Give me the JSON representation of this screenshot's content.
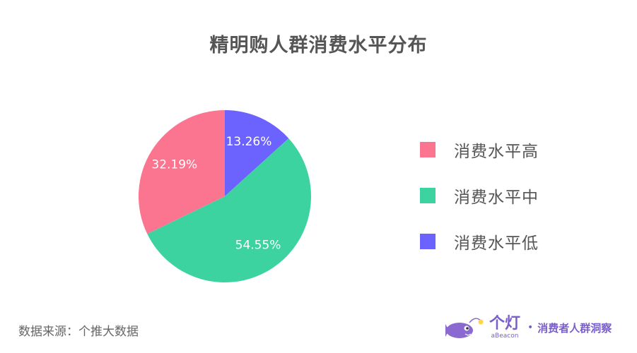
{
  "title": "精明购人群消费水平分布",
  "source": "数据来源：个推大数据",
  "brand": {
    "name_cn": "个灯",
    "name_en": "aBeacon",
    "dot": "•",
    "tagline": "消费者人群洞察"
  },
  "chart_data": {
    "type": "pie",
    "title": "精明购人群消费水平分布",
    "slices": [
      {
        "name": "消费水平低",
        "value": 13.26,
        "label": "13.26%",
        "color": "#6c63fe"
      },
      {
        "name": "消费水平中",
        "value": 54.55,
        "label": "54.55%",
        "color": "#3cd3a0"
      },
      {
        "name": "消费水平高",
        "value": 32.19,
        "label": "32.19%",
        "color": "#fc7590"
      }
    ],
    "legend": {
      "position": "right",
      "items": [
        {
          "name": "消费水平高",
          "color": "#fc7590"
        },
        {
          "name": "消费水平中",
          "color": "#3cd3a0"
        },
        {
          "name": "消费水平低",
          "color": "#6c63fe"
        }
      ]
    }
  }
}
